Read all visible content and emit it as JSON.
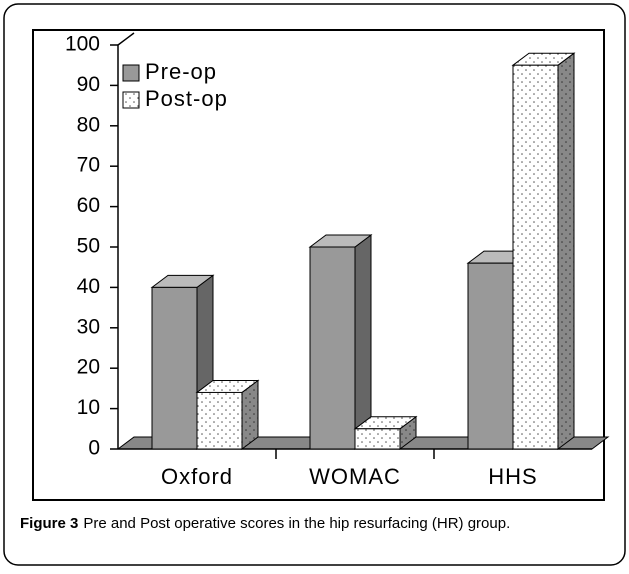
{
  "chart_data": {
    "type": "bar3d",
    "categories": [
      "Oxford",
      "WOMAC",
      "HHS"
    ],
    "series": [
      {
        "name": "Pre-op",
        "color": "#999999",
        "values": [
          40,
          50,
          46
        ]
      },
      {
        "name": "Post-op",
        "color": "#ffffff",
        "values": [
          14,
          5,
          95
        ]
      }
    ],
    "ylim": [
      0,
      100
    ],
    "yticks": [
      0,
      10,
      20,
      30,
      40,
      50,
      60,
      70,
      80,
      90,
      100
    ],
    "legend": "upper left",
    "caption_label": "Figure 3",
    "caption": "Pre and Post operative scores in the hip resurfacing (HR) group."
  }
}
